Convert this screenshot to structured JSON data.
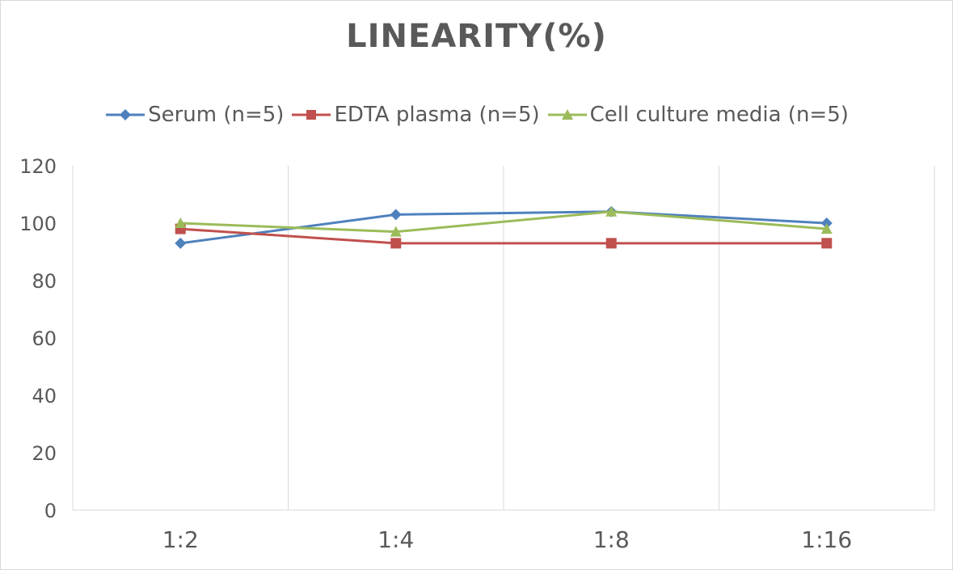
{
  "chart_data": {
    "type": "line",
    "title": "LINEARITY(%)",
    "xlabel": "",
    "ylabel": "",
    "categories": [
      "1:2",
      "1:4",
      "1:8",
      "1:16"
    ],
    "ylim": [
      0,
      120
    ],
    "yticks": [
      0,
      20,
      40,
      60,
      80,
      100,
      120
    ],
    "grid": "vertical",
    "legend_position": "top",
    "series": [
      {
        "name": "Serum (n=5)",
        "values": [
          93,
          103,
          104,
          100
        ],
        "color": "#4f81bd",
        "marker": "diamond"
      },
      {
        "name": "EDTA plasma (n=5)",
        "values": [
          98,
          93,
          93,
          93
        ],
        "color": "#c0504d",
        "marker": "square"
      },
      {
        "name": "Cell culture media (n=5)",
        "values": [
          100,
          97,
          104,
          98
        ],
        "color": "#9bbb59",
        "marker": "triangle"
      }
    ]
  }
}
